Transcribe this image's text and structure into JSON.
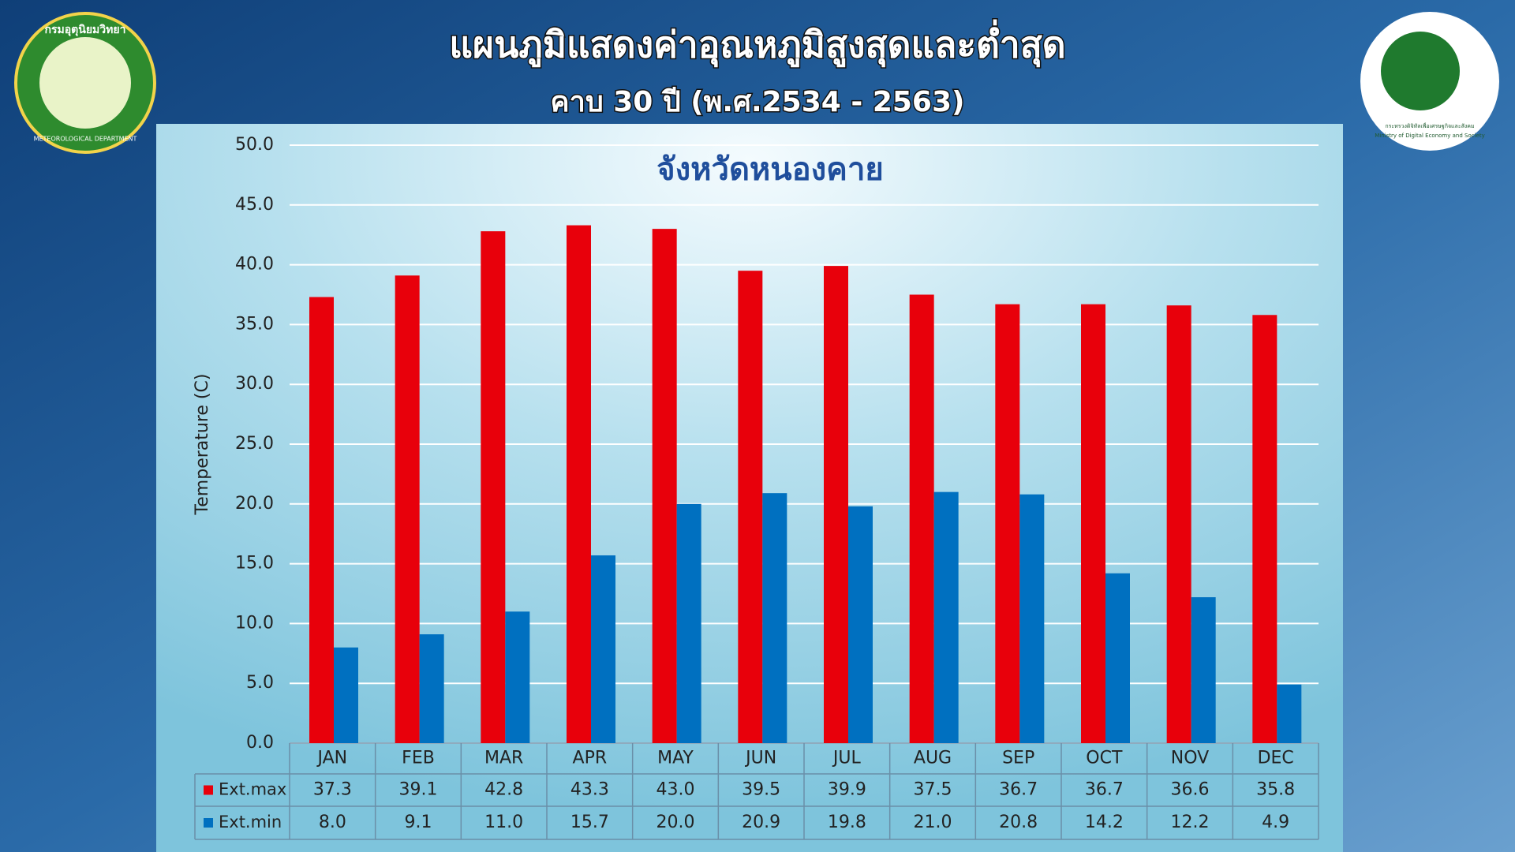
{
  "chart_data": {
    "type": "bar",
    "title": "แผนภูมิแสดงค่าอุณหภูมิสูงสุดและต่ำสุด",
    "subtitle": "คาบ 30 ปี (พ.ศ.2534 - 2563)",
    "chart_title": "จังหวัดหนองคาย",
    "y_label": "Temperature (C)",
    "categories": [
      "JAN",
      "FEB",
      "MAR",
      "APR",
      "MAY",
      "JUN",
      "JUL",
      "AUG",
      "SEP",
      "OCT",
      "NOV",
      "DEC"
    ],
    "series": [
      {
        "name": "Ext.max",
        "color": "#e8000b",
        "values": [
          37.3,
          39.1,
          42.8,
          43.3,
          43.0,
          39.5,
          39.9,
          37.5,
          36.7,
          36.7,
          36.6,
          35.8
        ],
        "value_labels": [
          "37.3",
          "39.1",
          "42.8",
          "43.3",
          "43.0",
          "39.5",
          "39.9",
          "37.5",
          "36.7",
          "36.7",
          "36.6",
          "35.8"
        ]
      },
      {
        "name": "Ext.min",
        "color": "#0070c0",
        "values": [
          8.0,
          9.1,
          11.0,
          15.7,
          20.0,
          20.9,
          19.8,
          21.0,
          20.8,
          14.2,
          12.2,
          4.9
        ],
        "value_labels": [
          "8.0",
          "9.1",
          "11.0",
          "15.7",
          "20.0",
          "20.9",
          "19.8",
          "21.0",
          "20.8",
          "14.2",
          "12.2",
          "4.9"
        ]
      }
    ],
    "ylim": [
      0,
      50
    ],
    "yticks": [
      {
        "value": 0,
        "label": "0.0"
      },
      {
        "value": 5,
        "label": "5.0"
      },
      {
        "value": 10,
        "label": "10.0"
      },
      {
        "value": 15,
        "label": "15.0"
      },
      {
        "value": 20,
        "label": "20.0"
      },
      {
        "value": 25,
        "label": "25.0"
      },
      {
        "value": 30,
        "label": "30.0"
      },
      {
        "value": 35,
        "label": "35.0"
      },
      {
        "value": 40,
        "label": "40.0"
      },
      {
        "value": 45,
        "label": "45.0"
      },
      {
        "value": 50,
        "label": "50.0"
      }
    ],
    "grid": true
  },
  "logos": {
    "left": [
      "กรมอุตุนิยมวิทยา",
      "METEOROLOGICAL DEPARTMENT"
    ],
    "right": [
      "กระทรวงดิจิทัลเพื่อเศรษฐกิจและสังคม",
      "Ministry of Digital Economy and Society"
    ]
  }
}
